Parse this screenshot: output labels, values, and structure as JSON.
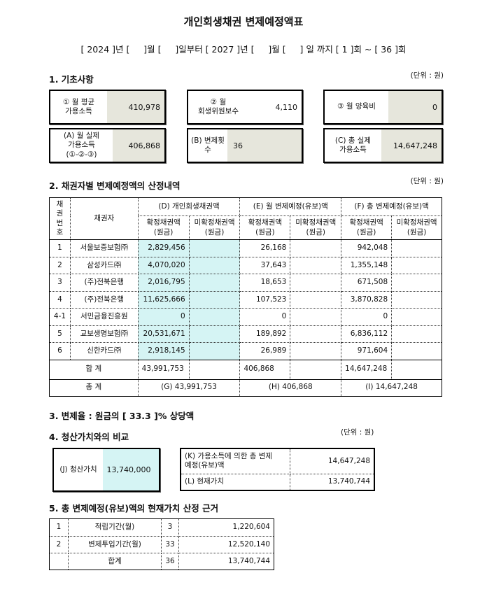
{
  "header": {
    "title": "개인회생채권 변제예정액표",
    "period": "[ 2024 ]년 [     ]월 [     ]일부터 [ 2027 ]년 [     ]월 [     ] 일 까지 [ 1 ]회 ~ [ 36 ]회"
  },
  "section1": {
    "title": "1. 기초사항",
    "unit": "(단위 : 원)",
    "boxes": [
      {
        "label": "① 월 평균\n가용소득",
        "value": "410,978"
      },
      {
        "label": "② 월\n회생위원보수",
        "value": "4,110"
      },
      {
        "label": "③ 월 양육비",
        "value": "0"
      },
      {
        "label": "(A) 월 실제\n가용소득\n(①-②-③)",
        "value": "406,868"
      },
      {
        "label": "(B) 변제횟수",
        "value": "36"
      },
      {
        "label": "(C) 총 실제\n가용소득",
        "value": "14,647,248"
      }
    ]
  },
  "section2": {
    "title": "2. 채권자별 변제예정액의 산정내역",
    "unit": "(단위 : 원)",
    "headers": {
      "no": "채권\n번호",
      "creditor": "채권자",
      "d": "(D) 개인회생채권액",
      "e": "(E) 월 변제예정(유보)액",
      "f": "(F) 총 변제예정(유보)액",
      "confirmed": "확정채권액\n(원금)",
      "unconfirmed": "미확정채권액\n(원금)"
    },
    "rows": [
      {
        "no": "1",
        "creditor": "서울보증보험㈜",
        "d": "2,829,456",
        "e": "26,168",
        "f": "942,048"
      },
      {
        "no": "2",
        "creditor": "삼성카드㈜",
        "d": "4,070,020",
        "e": "37,643",
        "f": "1,355,148"
      },
      {
        "no": "3",
        "creditor": "(주)전북은행",
        "d": "2,016,795",
        "e": "18,653",
        "f": "671,508"
      },
      {
        "no": "4",
        "creditor": "(주)전북은행",
        "d": "11,625,666",
        "e": "107,523",
        "f": "3,870,828"
      },
      {
        "no": "4-1",
        "creditor": "서민금융진흥원",
        "d": "0",
        "e": "0",
        "f": "0"
      },
      {
        "no": "5",
        "creditor": "교보생명보험㈜",
        "d": "20,531,671",
        "e": "189,892",
        "f": "6,836,112"
      },
      {
        "no": "6",
        "creditor": "신한카드㈜",
        "d": "2,918,145",
        "e": "26,989",
        "f": "971,604"
      }
    ],
    "sum": {
      "label": "합 계",
      "d": "43,991,753",
      "e": "406,868",
      "f": "14,647,248"
    },
    "total": {
      "label": "총 계",
      "g": "(G) 43,991,753",
      "h": "(H) 406,868",
      "i": "(I) 14,647,248"
    }
  },
  "section3": {
    "title": "3. 변제율 : 원금의 [ 33.3 ]% 상당액"
  },
  "section4": {
    "title": "4. 청산가치와의 비교",
    "unit": "(단위 : 원)",
    "j": {
      "label": "(J) 청산가치",
      "value": "13,740,000"
    },
    "k": {
      "label": "(K) 가용소득에 의한 총 변제\n예정(유보)액",
      "value": "14,647,248"
    },
    "l": {
      "label": "(L) 현재가치",
      "value": "13,740,744"
    }
  },
  "section5": {
    "title": "5. 총 변제예정(유보)액의 현재가치 산정 근거",
    "rows": [
      [
        "1",
        "적립기간(월)",
        "3",
        "1,220,604"
      ],
      [
        "2",
        "변제투입기간(월)",
        "33",
        "12,520,140"
      ]
    ],
    "total": [
      "합계",
      "36",
      "13,740,744"
    ]
  }
}
